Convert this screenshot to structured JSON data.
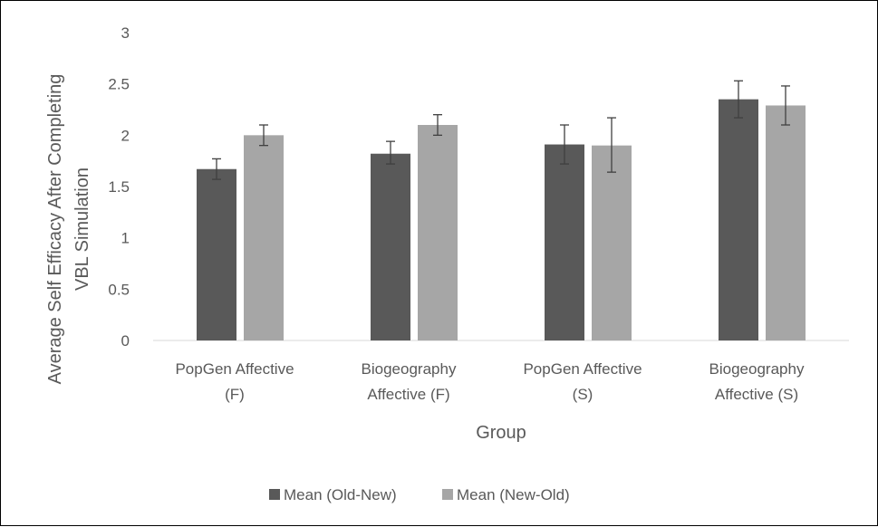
{
  "chart_data": {
    "type": "bar",
    "title": "",
    "xlabel": "Group",
    "ylabel_lines": [
      "Average Self Efficacy After Completing",
      "VBL Simulation"
    ],
    "ylim": [
      0,
      3
    ],
    "yticks": [
      "0",
      "0.5",
      "1",
      "1.5",
      "2",
      "2.5",
      "3"
    ],
    "categories": [
      [
        "PopGen Affective",
        "(F)"
      ],
      [
        "Biogeography",
        "Affective (F)"
      ],
      [
        "PopGen Affective",
        "(S)"
      ],
      [
        "Biogeography",
        "Affective (S)"
      ]
    ],
    "series": [
      {
        "name": "Mean (Old-New)",
        "color": "#595959",
        "values": [
          1.67,
          1.82,
          1.91,
          2.35
        ],
        "error_low": [
          1.57,
          1.72,
          1.72,
          2.17
        ],
        "error_high": [
          1.77,
          1.94,
          2.1,
          2.53
        ]
      },
      {
        "name": "Mean (New-Old)",
        "color": "#a6a6a6",
        "values": [
          2.0,
          2.1,
          1.9,
          2.29
        ],
        "error_low": [
          1.9,
          2.0,
          1.64,
          2.1
        ],
        "error_high": [
          2.1,
          2.2,
          2.17,
          2.48
        ]
      }
    ],
    "grid": false,
    "legend_position": "bottom"
  }
}
